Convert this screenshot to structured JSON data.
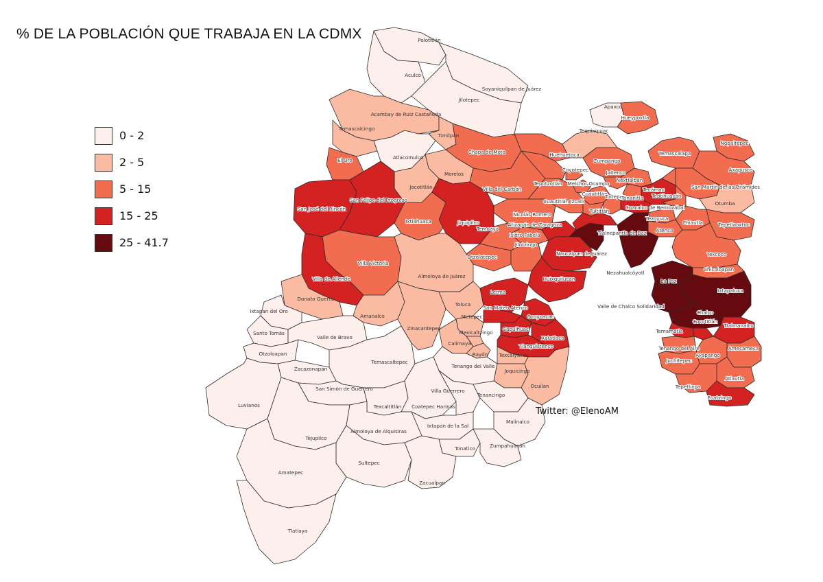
{
  "title": "% DE LA POBLACIÓN QUE TRABAJA EN LA CDMX",
  "credit": "Twitter: @ElenoAM",
  "legend": {
    "classes": [
      {
        "label": "0 - 2",
        "color": "#fdf0ec",
        "class": 0
      },
      {
        "label": "2 - 5",
        "color": "#fbbba3",
        "class": 1
      },
      {
        "label": "5 - 15",
        "color": "#f26c4f",
        "class": 2
      },
      {
        "label": "15 - 25",
        "color": "#d42222",
        "class": 3
      },
      {
        "label": "25 - 41.7",
        "color": "#650b10",
        "class": 4
      }
    ]
  },
  "municipalities": [
    {
      "name": "Polotitlán",
      "class": 0
    },
    {
      "name": "Aculco",
      "class": 0
    },
    {
      "name": "Soyaniquilpan de Juárez",
      "class": 0
    },
    {
      "name": "Jilotepec",
      "class": 0
    },
    {
      "name": "Acambay de Ruiz Castañeda",
      "class": 1
    },
    {
      "name": "Temascalcingo",
      "class": 1
    },
    {
      "name": "Timilpan",
      "class": 1
    },
    {
      "name": "Atlacomulco",
      "class": 0
    },
    {
      "name": "El Oro",
      "class": 2
    },
    {
      "name": "Chapa de Mota",
      "class": 2
    },
    {
      "name": "Morelos",
      "class": 1
    },
    {
      "name": "Villa del Carbón",
      "class": 2
    },
    {
      "name": "Jocotitlán",
      "class": 1
    },
    {
      "name": "San José del Rincón",
      "class": 3
    },
    {
      "name": "San Felipe del Progreso",
      "class": 3
    },
    {
      "name": "Ixtlahuaca",
      "class": 2
    },
    {
      "name": "Jiquipilco",
      "class": 3
    },
    {
      "name": "Temoaya",
      "class": 2
    },
    {
      "name": "Otzolotepec",
      "class": 2
    },
    {
      "name": "Villa Victoria",
      "class": 2
    },
    {
      "name": "Villa de Allende",
      "class": 3
    },
    {
      "name": "Almoloya de Juárez",
      "class": 1
    },
    {
      "name": "Donato Guerra",
      "class": 1
    },
    {
      "name": "Amanalco",
      "class": 1
    },
    {
      "name": "Ixtapan del Oro",
      "class": 0
    },
    {
      "name": "Santo Tomás",
      "class": 0
    },
    {
      "name": "Valle de Bravo",
      "class": 0
    },
    {
      "name": "Otzoloapan",
      "class": 0
    },
    {
      "name": "Zacazonapan",
      "class": 0
    },
    {
      "name": "Temascaltepec",
      "class": 0
    },
    {
      "name": "Zinacantepec",
      "class": 1
    },
    {
      "name": "Toluca",
      "class": 1
    },
    {
      "name": "Metepec",
      "class": 1
    },
    {
      "name": "Mexicaltzingo",
      "class": 1
    },
    {
      "name": "Calimaya",
      "class": 1
    },
    {
      "name": "Rayón",
      "class": 1
    },
    {
      "name": "Tenango del Valle",
      "class": 0
    },
    {
      "name": "Lerma",
      "class": 3
    },
    {
      "name": "San Mateo Atenco",
      "class": 3
    },
    {
      "name": "Ocoyoacac",
      "class": 3
    },
    {
      "name": "Capulhuac",
      "class": 3
    },
    {
      "name": "Xalatlaco",
      "class": 3
    },
    {
      "name": "Tianguistenco",
      "class": 3
    },
    {
      "name": "Texcalyacac",
      "class": 1
    },
    {
      "name": "Joquicingo",
      "class": 1
    },
    {
      "name": "Ocuilan",
      "class": 1
    },
    {
      "name": "Luvianos",
      "class": 0
    },
    {
      "name": "San Simón de Guerrero",
      "class": 0
    },
    {
      "name": "Tejupilco",
      "class": 0
    },
    {
      "name": "Texcaltitlán",
      "class": 0
    },
    {
      "name": "Coatepec Harinas",
      "class": 0
    },
    {
      "name": "Villa Guerrero",
      "class": 0
    },
    {
      "name": "Tenancingo",
      "class": 0
    },
    {
      "name": "Ixtapan de la Sal",
      "class": 0
    },
    {
      "name": "Almoloya de Alquisiras",
      "class": 0
    },
    {
      "name": "Malinalco",
      "class": 0
    },
    {
      "name": "Tonatico",
      "class": 0
    },
    {
      "name": "Zumpahuacán",
      "class": 0
    },
    {
      "name": "Sultepec",
      "class": 0
    },
    {
      "name": "Zacualpan",
      "class": 0
    },
    {
      "name": "Amatepec",
      "class": 0
    },
    {
      "name": "Tlatlaya",
      "class": 0
    },
    {
      "name": "Isidro Fabela",
      "class": 2
    },
    {
      "name": "Jilotzingo",
      "class": 2
    },
    {
      "name": "Nicolás Romero",
      "class": 2
    },
    {
      "name": "Atizapán de Zaragoza",
      "class": 3
    },
    {
      "name": "Naucalpan de Juárez",
      "class": 3
    },
    {
      "name": "Huixquilucan",
      "class": 3
    },
    {
      "name": "Tlalnepantla de Baz",
      "class": 4
    },
    {
      "name": "Cuautitlán Izcalli",
      "class": 2
    },
    {
      "name": "Tepotzotlán",
      "class": 2
    },
    {
      "name": "Huehuetoca",
      "class": 2
    },
    {
      "name": "Coyotepec",
      "class": 2
    },
    {
      "name": "Teoloyucan",
      "class": 2
    },
    {
      "name": "Melchor Ocampo",
      "class": 2
    },
    {
      "name": "Cuautitlán",
      "class": 2
    },
    {
      "name": "Tultitlán",
      "class": 3
    },
    {
      "name": "Tultepec",
      "class": 2
    },
    {
      "name": "Zumpango",
      "class": 2
    },
    {
      "name": "Jaltenco",
      "class": 2
    },
    {
      "name": "Nextlalpan",
      "class": 2
    },
    {
      "name": "Tecámac",
      "class": 3
    },
    {
      "name": "Tonanitla",
      "class": 2
    },
    {
      "name": "Coacalco de Berriozábal",
      "class": 3
    },
    {
      "name": "Tequixquiac",
      "class": 1
    },
    {
      "name": "Apaxco",
      "class": 0
    },
    {
      "name": "Hueypoxtla",
      "class": 2
    },
    {
      "name": "Temascalapa",
      "class": 2
    },
    {
      "name": "Nopaltepec",
      "class": 2
    },
    {
      "name": "Axapusco",
      "class": 2
    },
    {
      "name": "San Martín de las Pirámides",
      "class": 2
    },
    {
      "name": "Teotihuacán",
      "class": 2
    },
    {
      "name": "Otumba",
      "class": 1
    },
    {
      "name": "Tezoyuca",
      "class": 2
    },
    {
      "name": "Chiautla",
      "class": 2
    },
    {
      "name": "Tepetlaoxtoc",
      "class": 2
    },
    {
      "name": "Atenco",
      "class": 2
    },
    {
      "name": "Texcoco",
      "class": 2
    },
    {
      "name": "Chicoloapan",
      "class": 2
    },
    {
      "name": "Nezahualcóyotl",
      "class": 4
    },
    {
      "name": "La Paz",
      "class": 4
    },
    {
      "name": "Ixtapaluca",
      "class": 4
    },
    {
      "name": "Valle de Chalco Solidaridad",
      "class": 4
    },
    {
      "name": "Chalco",
      "class": 4
    },
    {
      "name": "Cocotitlán",
      "class": 3
    },
    {
      "name": "Temamatla",
      "class": 3
    },
    {
      "name": "Tlalmanalco",
      "class": 3
    },
    {
      "name": "Tenango del Aire",
      "class": 2
    },
    {
      "name": "Juchitepec",
      "class": 2
    },
    {
      "name": "Ayapango",
      "class": 2
    },
    {
      "name": "Amecameca",
      "class": 2
    },
    {
      "name": "Atlautla",
      "class": 2
    },
    {
      "name": "Tepetlixpa",
      "class": 2
    },
    {
      "name": "Ecatzingo",
      "class": 3
    },
    {
      "name": "Temoaya ",
      "class": 2
    }
  ]
}
